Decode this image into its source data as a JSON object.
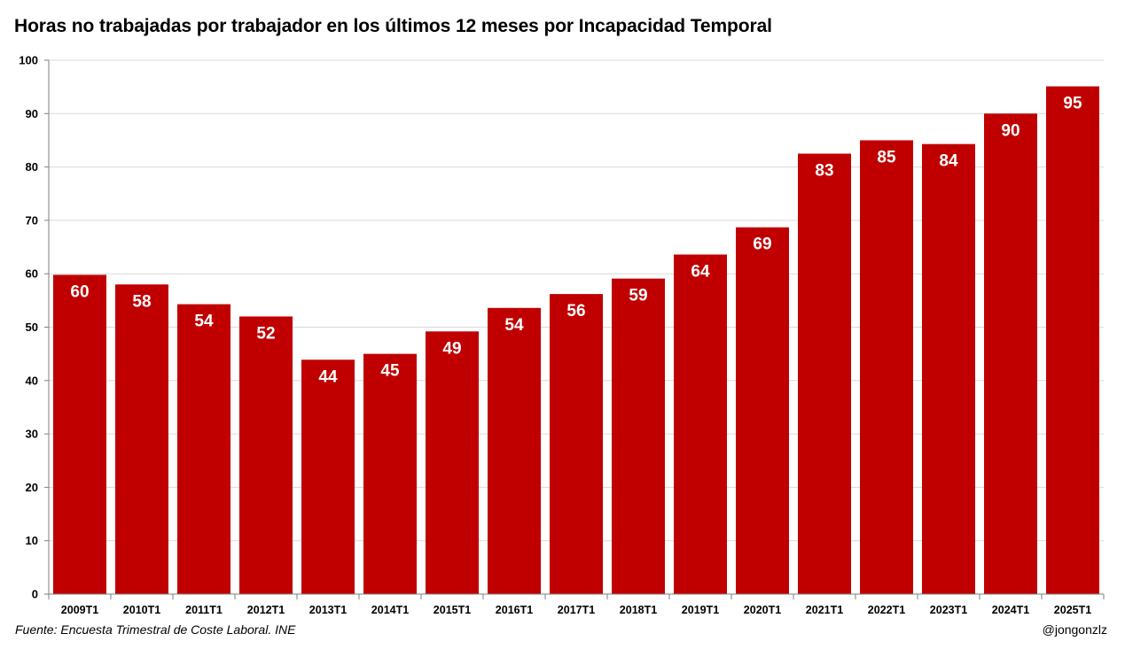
{
  "title": "Horas no trabajadas por trabajador en los últimos 12 meses por Incapacidad Temporal",
  "source": "Fuente: Encuesta Trimestral de Coste Laboral. INE",
  "handle": "@jongonzlz",
  "colors": {
    "bar": "#c00000",
    "grid": "#d9d9d9",
    "axis": "#7f7f7f",
    "label": "#ffffff"
  },
  "chart_data": {
    "type": "bar",
    "title": "Horas no trabajadas por trabajador en los últimos 12 meses por Incapacidad Temporal",
    "xlabel": "",
    "ylabel": "",
    "categories": [
      "2009T1",
      "2010T1",
      "2011T1",
      "2012T1",
      "2013T1",
      "2014T1",
      "2015T1",
      "2016T1",
      "2017T1",
      "2018T1",
      "2019T1",
      "2020T1",
      "2021T1",
      "2022T1",
      "2023T1",
      "2024T1",
      "2025T1"
    ],
    "values": [
      59.8,
      58.0,
      54.3,
      52.0,
      43.9,
      45.0,
      49.2,
      53.6,
      56.2,
      59.1,
      63.6,
      68.7,
      82.5,
      85.0,
      84.3,
      90.0,
      95.1
    ],
    "data_labels": [
      "60",
      "58",
      "54",
      "52",
      "44",
      "45",
      "49",
      "54",
      "56",
      "59",
      "64",
      "69",
      "83",
      "85",
      "84",
      "90",
      "95"
    ],
    "ylim": [
      0,
      100
    ],
    "yticks": [
      0,
      10,
      20,
      30,
      40,
      50,
      60,
      70,
      80,
      90,
      100
    ],
    "grid": true,
    "legend": "none"
  }
}
